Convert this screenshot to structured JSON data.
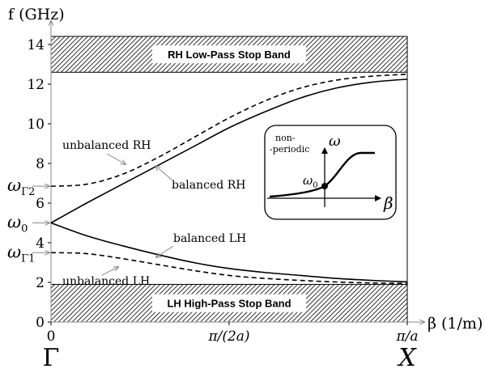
{
  "chart_data": {
    "type": "line",
    "ylabel": "f (GHz)",
    "xlabel": "β (1/m)",
    "ylim": [
      0,
      14
    ],
    "y_ticks": [
      0,
      2,
      4,
      6,
      8,
      10,
      12,
      14
    ],
    "x_ticks": [
      {
        "value": 0,
        "label": "0",
        "point": "Γ"
      },
      {
        "value": 0.5,
        "label": "π/(2a)",
        "point": ""
      },
      {
        "value": 1,
        "label": "π/a",
        "point": "X"
      }
    ],
    "y_markers": [
      {
        "label": "ωΓ2",
        "value": 6.85
      },
      {
        "label": "ω0",
        "value": 5.0
      },
      {
        "label": "ωΓ1",
        "value": 3.5
      }
    ],
    "stop_bands": [
      {
        "label": "RH Low-Pass Stop Band",
        "from": 12.6,
        "to": 14.5
      },
      {
        "label": "LH High-Pass Stop Band",
        "from": 0,
        "to": 1.9
      }
    ],
    "series": [
      {
        "name": "balanced RH",
        "style": "solid",
        "x": [
          0,
          0.1,
          0.2,
          0.3,
          0.4,
          0.5,
          0.6,
          0.7,
          0.8,
          0.9,
          1.0
        ],
        "y": [
          5.0,
          6.0,
          6.95,
          7.9,
          8.85,
          9.8,
          10.6,
          11.3,
          11.8,
          12.1,
          12.25
        ]
      },
      {
        "name": "unbalanced RH",
        "style": "dashed",
        "x": [
          0,
          0.1,
          0.2,
          0.3,
          0.4,
          0.5,
          0.6,
          0.7,
          0.8,
          0.9,
          1.0
        ],
        "y": [
          6.85,
          6.95,
          7.45,
          8.3,
          9.3,
          10.3,
          11.15,
          11.8,
          12.2,
          12.4,
          12.5
        ]
      },
      {
        "name": "balanced LH",
        "style": "solid",
        "x": [
          0,
          0.1,
          0.2,
          0.3,
          0.4,
          0.5,
          0.6,
          0.7,
          0.8,
          0.9,
          1.0
        ],
        "y": [
          5.0,
          4.35,
          3.85,
          3.4,
          3.0,
          2.7,
          2.5,
          2.35,
          2.2,
          2.1,
          2.03
        ]
      },
      {
        "name": "unbalanced LH",
        "style": "dashed",
        "x": [
          0,
          0.1,
          0.2,
          0.3,
          0.4,
          0.5,
          0.6,
          0.7,
          0.8,
          0.9,
          1.0
        ],
        "y": [
          3.5,
          3.45,
          3.2,
          2.9,
          2.6,
          2.35,
          2.2,
          2.1,
          2.02,
          1.97,
          1.95
        ]
      }
    ],
    "inset": {
      "note": "non-\n-periodic",
      "ylabel": "ω",
      "xlabel": "β",
      "point_label": "ω0"
    }
  }
}
